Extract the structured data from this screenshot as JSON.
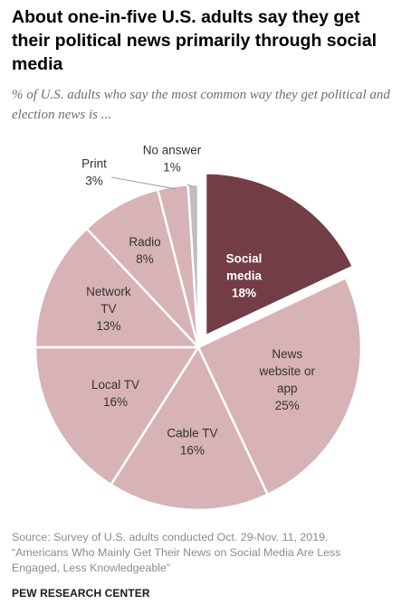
{
  "title": "About one-in-five U.S. adults say they get their political news primarily through social media",
  "subtitle": "% of U.S. adults who say the most common way they get political and election news is ...",
  "chart_data": {
    "type": "pie",
    "slices": [
      {
        "name": "Social media",
        "value": 18,
        "label": "18%",
        "color": "#723d46",
        "exploded": true
      },
      {
        "name": "News website or app",
        "value": 25,
        "label": "25%",
        "color": "#d7b2b6"
      },
      {
        "name": "Cable TV",
        "value": 16,
        "label": "16%",
        "color": "#d7b2b6"
      },
      {
        "name": "Local TV",
        "value": 16,
        "label": "16%",
        "color": "#d7b2b6"
      },
      {
        "name": "Network TV",
        "value": 13,
        "label": "13%",
        "color": "#d7b2b6"
      },
      {
        "name": "Radio",
        "value": 8,
        "label": "8%",
        "color": "#d7b2b6"
      },
      {
        "name": "Print",
        "value": 3,
        "label": "3%",
        "color": "#d7b2b6"
      },
      {
        "name": "No answer",
        "value": 1,
        "label": "1%",
        "color": "#bdbdbd"
      }
    ]
  },
  "source": {
    "line1": "Source: Survey of U.S. adults conducted Oct. 29-Nov. 11, 2019.",
    "line2": "“Americans Who Mainly Get Their News on Social Media Are Less",
    "line3": "Engaged, Less Knowledgeable”"
  },
  "brand": "PEW RESEARCH CENTER"
}
